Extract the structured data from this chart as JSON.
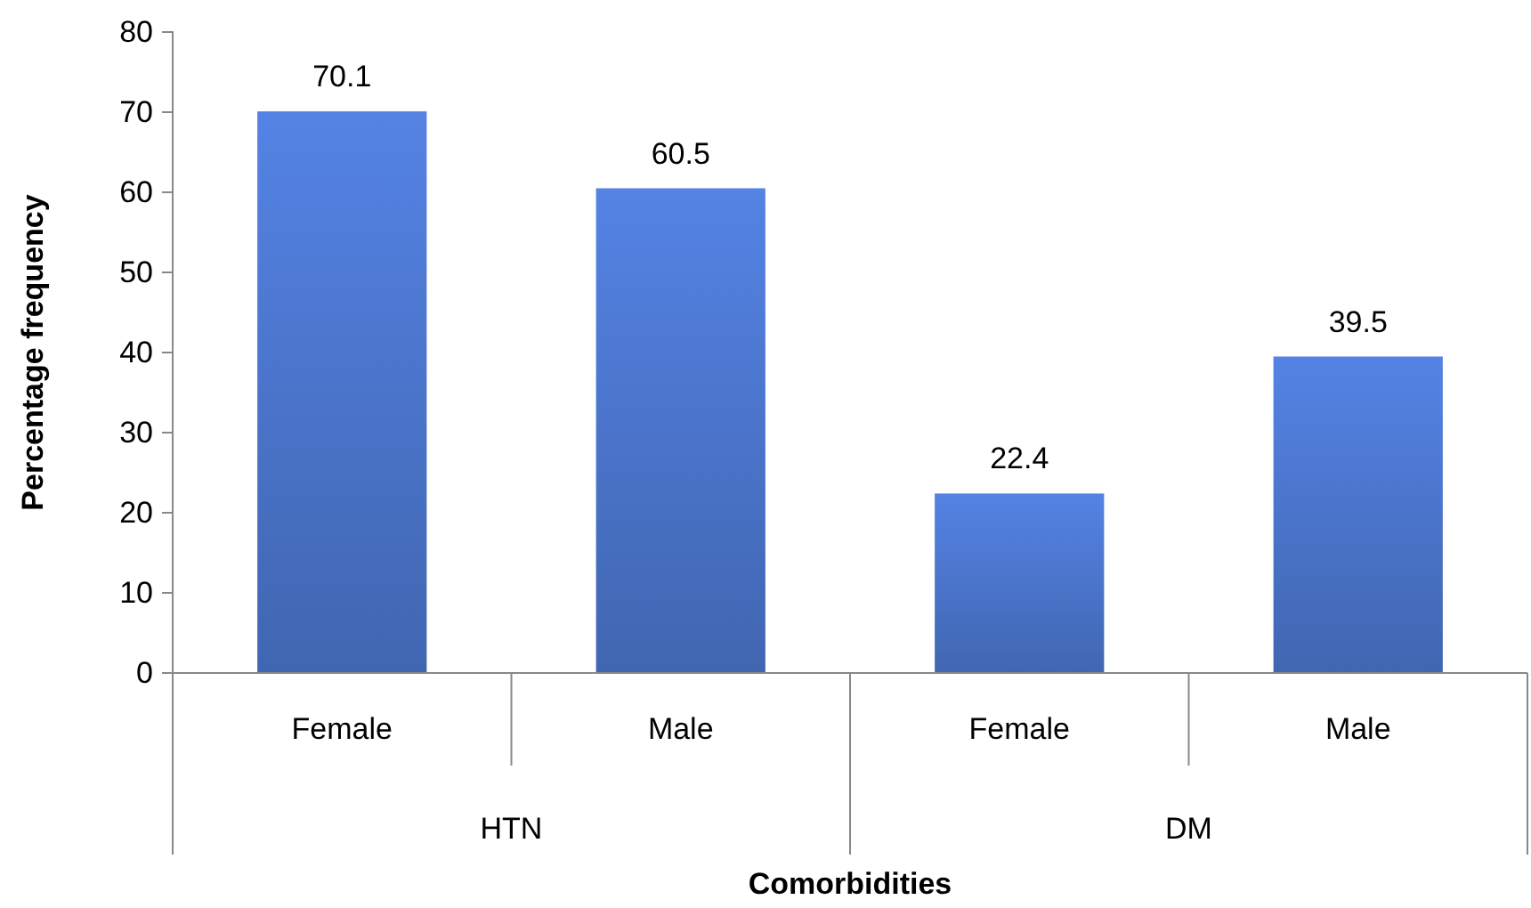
{
  "chart_data": {
    "type": "bar",
    "xlabel": "Comorbidities",
    "ylabel": "Percentage frequency",
    "categories": [
      "Female",
      "Male",
      "Female",
      "Male"
    ],
    "values": [
      70.1,
      60.5,
      22.4,
      39.5
    ],
    "color": "#4a74c9",
    "ylim": [
      0,
      80
    ],
    "yticks": [
      0,
      10,
      20,
      30,
      40,
      50,
      60,
      70,
      80
    ],
    "grid": false,
    "data_labels": true,
    "annotations": [
      "HTN",
      "DM"
    ]
  }
}
